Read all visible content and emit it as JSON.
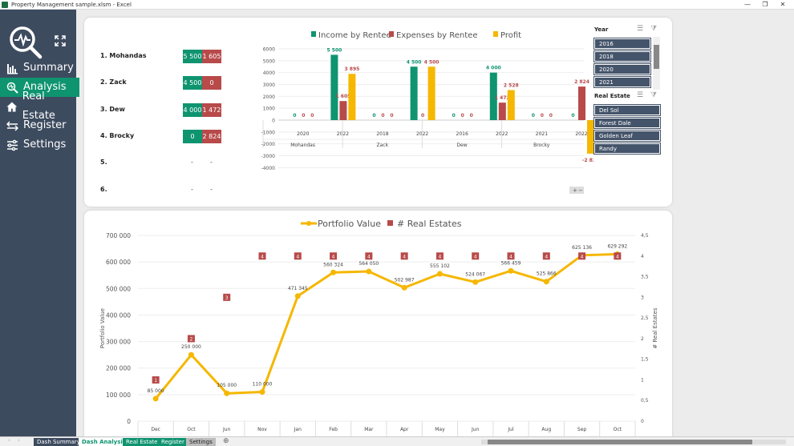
{
  "window": {
    "title": "Property Management sample.xlsm - Excel",
    "controls": [
      "—",
      "❐",
      "✕"
    ]
  },
  "sidebar": {
    "items": [
      {
        "label": "Summary",
        "icon": "bar-chart-icon"
      },
      {
        "label": "Analysis",
        "icon": "magnifier-chart-icon",
        "active": true
      },
      {
        "label": "Real Estate",
        "icon": "home-icon"
      },
      {
        "label": "Register",
        "icon": "swap-arrows-icon"
      },
      {
        "label": "Settings",
        "icon": "sliders-icon"
      }
    ]
  },
  "ranking": [
    {
      "label": "1. Mohandas",
      "income": "5 500",
      "expenses": "1 605"
    },
    {
      "label": "2. Zack",
      "income": "4 500",
      "expenses": "0"
    },
    {
      "label": "3. Dew",
      "income": "4 000",
      "expenses": "1 472"
    },
    {
      "label": "4. Brocky",
      "income": "0",
      "expenses": "2 824"
    },
    {
      "label": "5.",
      "income": "-",
      "expenses": "-"
    },
    {
      "label": "6.",
      "income": "-",
      "expenses": "-"
    }
  ],
  "slicers": {
    "year": {
      "title": "Year",
      "items": [
        "2016",
        "2018",
        "2020",
        "2021"
      ]
    },
    "real_estate": {
      "title": "Real Estate",
      "items": [
        "Del Sol",
        "Forest Dale",
        "Golden Leaf",
        "Randy"
      ]
    }
  },
  "colors": {
    "income": "#0f9470",
    "expenses": "#b84a4a",
    "profit": "#f5b700",
    "sidebar": "#3d4b5f",
    "slicer": "#44546a"
  },
  "chart_data": [
    {
      "type": "bar",
      "legend": [
        "Income by Rentee",
        "Expenses by Rentee",
        "Profit"
      ],
      "legend_placement": "top",
      "groups": [
        "Mohandas",
        "Zack",
        "Dew",
        "Brocky"
      ],
      "categories": [
        [
          "Mohandas",
          "2020"
        ],
        [
          "Mohandas",
          "2022"
        ],
        [
          "Zack",
          "2018"
        ],
        [
          "Zack",
          "2022"
        ],
        [
          "Dew",
          "2016"
        ],
        [
          "Dew",
          "2022"
        ],
        [
          "Brocky",
          "2021"
        ],
        [
          "Brocky",
          "2022"
        ]
      ],
      "series": [
        {
          "name": "Income by Rentee",
          "values": [
            0,
            5500,
            0,
            4500,
            0,
            4000,
            0,
            0
          ],
          "labels": [
            "0",
            "5 500",
            "0",
            "4 500",
            "0",
            "4 000",
            "0",
            "0"
          ]
        },
        {
          "name": "Expenses by Rentee",
          "values": [
            0,
            1605,
            0,
            0,
            0,
            1472,
            0,
            2824
          ],
          "labels": [
            "0",
            "1 605",
            "0",
            "0",
            "0",
            "1 472",
            "0",
            "2 824"
          ]
        },
        {
          "name": "Profit",
          "values": [
            0,
            3895,
            0,
            4500,
            0,
            2528,
            0,
            -2824
          ],
          "labels": [
            "0",
            "3 895",
            "0",
            "4 500",
            "0",
            "2 528",
            "0",
            "-2 824"
          ]
        }
      ],
      "ylim": [
        -4000,
        6000
      ],
      "yticks": [
        "6000",
        "5000",
        "4000",
        "3000",
        "2000",
        "1000",
        "0",
        "-1000",
        "-2000",
        "-3000",
        "-4000"
      ],
      "grid": true,
      "zoom_buttons": [
        "+",
        "−"
      ]
    },
    {
      "type": "line",
      "legend": [
        "Portfolio Value",
        "# Real Estates"
      ],
      "legend_placement": "top",
      "categories": [
        "Dec",
        "Oct",
        "Jun",
        "Nov",
        "Jan",
        "Feb",
        "Mar",
        "Apr",
        "May",
        "Jun",
        "Jul",
        "Aug",
        "Sep",
        "Oct"
      ],
      "series": [
        {
          "name": "Portfolio Value",
          "axis": "left",
          "values": [
            85000,
            250000,
            105000,
            110000,
            471345,
            560324,
            564050,
            502987,
            555102,
            524067,
            566459,
            525866,
            625136,
            629292
          ],
          "labels": [
            "85 000",
            "250 000",
            "105 000",
            "110 000",
            "471 345",
            "560 324",
            "564 050",
            "502 987",
            "555 102",
            "524 067",
            "566 459",
            "525 866",
            "625 136",
            "629 292"
          ]
        },
        {
          "name": "# Real Estates",
          "axis": "right",
          "values": [
            1,
            2,
            3,
            4,
            4,
            4,
            4,
            4,
            4,
            4,
            4,
            4,
            4,
            4
          ]
        }
      ],
      "ylabel": "Portfolio Value",
      "y2label": "# Real Estates",
      "ylim": [
        0,
        700000
      ],
      "y2lim": [
        0,
        4.5
      ],
      "yticks": [
        "700 000",
        "600 000",
        "500 000",
        "400 000",
        "300 000",
        "200 000",
        "100 000",
        "0"
      ],
      "y2ticks": [
        "4,5",
        "4",
        "3,5",
        "3",
        "2,5",
        "2",
        "1,5",
        "1",
        "0,5",
        "0"
      ],
      "grid": true
    }
  ],
  "sheet_tabs": [
    "Dash Summary",
    "Dash Analysis",
    "Real Estate",
    "Register",
    "Settings"
  ],
  "add_sheet": "⊕"
}
